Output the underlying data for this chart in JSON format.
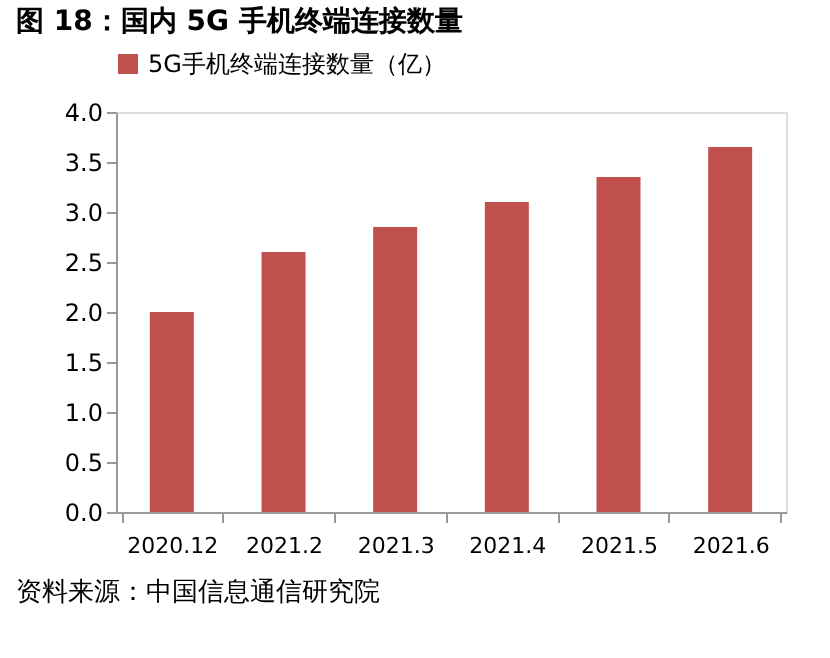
{
  "chart_data": {
    "type": "bar",
    "title": "图 18：国内 5G 手机终端连接数量",
    "categories": [
      "2020.12",
      "2021.2",
      "2021.3",
      "2021.4",
      "2021.5",
      "2021.6"
    ],
    "series": [
      {
        "name": "5G手机终端连接数量（亿）",
        "color": "#c0504d",
        "values": [
          2.0,
          2.6,
          2.85,
          3.1,
          3.35,
          3.65
        ]
      }
    ],
    "ylim": [
      0,
      4
    ],
    "yticks": [
      {
        "value": 0,
        "label": "0.0"
      },
      0.5,
      {
        "value": 1,
        "label": "1.0"
      },
      1.5,
      {
        "value": 2,
        "label": "2.0"
      },
      2.5,
      {
        "value": 3,
        "label": "3.0"
      },
      3.5,
      {
        "value": 4,
        "label": "4.0"
      }
    ],
    "grid": false,
    "legend": "top",
    "annotations": [
      "资料来源：中国信息通信研究院"
    ]
  }
}
